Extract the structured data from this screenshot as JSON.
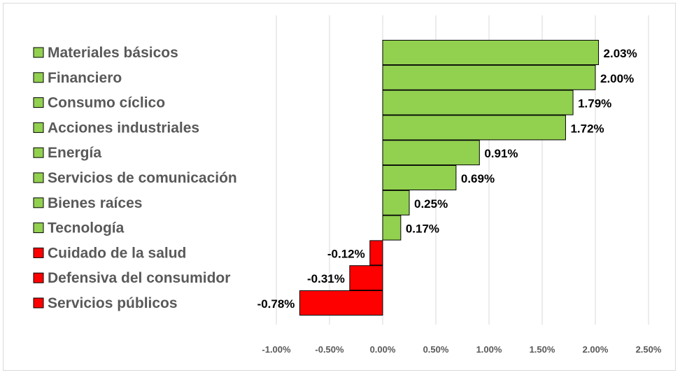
{
  "chart_data": {
    "type": "bar",
    "orientation": "horizontal",
    "categories": [
      "Materiales básicos",
      "Financiero",
      "Consumo cíclico",
      "Acciones industriales",
      "Energía",
      "Servicios de comunicación",
      "Bienes raíces",
      "Tecnología",
      "Cuidado de la salud",
      "Defensiva del consumidor",
      "Servicios públicos"
    ],
    "values": [
      2.03,
      2.0,
      1.79,
      1.72,
      0.91,
      0.69,
      0.25,
      0.17,
      -0.12,
      -0.31,
      -0.78
    ],
    "value_labels": [
      "2.03%",
      "2.00%",
      "1.79%",
      "1.72%",
      "0.91%",
      "0.69%",
      "0.25%",
      "0.17%",
      "-0.12%",
      "-0.31%",
      "-0.78%"
    ],
    "x_ticks": [
      -1.0,
      -0.5,
      0.0,
      0.5,
      1.0,
      1.5,
      2.0,
      2.5
    ],
    "x_tick_labels": [
      "-1.00%",
      "-0.50%",
      "0.00%",
      "0.50%",
      "1.00%",
      "1.50%",
      "2.00%",
      "2.50%"
    ],
    "xlim": [
      -1.0,
      2.5
    ],
    "title": "",
    "xlabel": "",
    "ylabel": "",
    "grid": "vertical",
    "legend_position": "left",
    "colors": {
      "positive": "#92d050",
      "negative": "#ff0000",
      "grid": "#d9d9d9",
      "outline": "#000000"
    }
  }
}
